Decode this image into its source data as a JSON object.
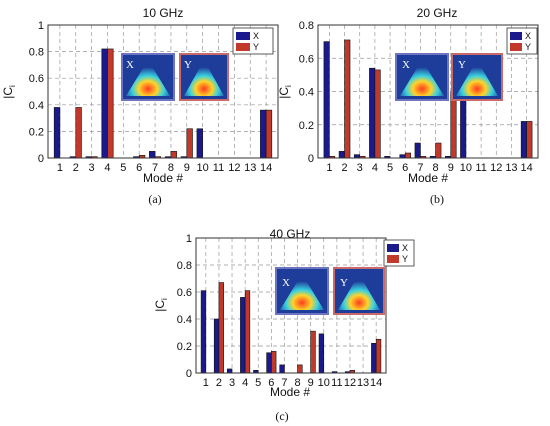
{
  "colors": {
    "x": "#1a1a8c",
    "y": "#c0392b",
    "grid": "#999999",
    "inset_bg": "#1e3c9a"
  },
  "chart_data": [
    {
      "type": "bar",
      "title": "10 GHz",
      "caption": "(a)",
      "xlabel": "Mode #",
      "ylabel": "|C",
      "ylabel_sub": "i",
      "ylim": [
        0,
        1
      ],
      "yticks": [
        0,
        0.2,
        0.4,
        0.6,
        0.8,
        1
      ],
      "categories": [
        "1",
        "2",
        "3",
        "4",
        "5",
        "6",
        "7",
        "8",
        "9",
        "10",
        "11",
        "12",
        "13",
        "14"
      ],
      "series": [
        {
          "name": "X",
          "values": [
            0.38,
            0.01,
            0.01,
            0.82,
            0.0,
            0.01,
            0.05,
            0.01,
            0.01,
            0.22,
            0.0,
            0.0,
            0.0,
            0.36
          ]
        },
        {
          "name": "Y",
          "values": [
            0.0,
            0.38,
            0.01,
            0.82,
            0.0,
            0.02,
            0.01,
            0.05,
            0.22,
            0.0,
            0.0,
            0.0,
            0.0,
            0.36
          ]
        }
      ],
      "grid": true,
      "legend": "top-right",
      "inset_labels": [
        "X",
        "Y"
      ]
    },
    {
      "type": "bar",
      "title": "20 GHz",
      "caption": "(b)",
      "xlabel": "Mode #",
      "ylabel": "|C",
      "ylabel_sub": "i",
      "ylim": [
        0,
        0.8
      ],
      "yticks": [
        0,
        0.2,
        0.4,
        0.6,
        0.8
      ],
      "categories": [
        "1",
        "2",
        "3",
        "4",
        "5",
        "6",
        "7",
        "8",
        "9",
        "10",
        "11",
        "12",
        "13",
        "14"
      ],
      "series": [
        {
          "name": "X",
          "values": [
            0.7,
            0.04,
            0.02,
            0.54,
            0.01,
            0.02,
            0.09,
            0.01,
            0.01,
            0.41,
            0.0,
            0.0,
            0.0,
            0.22
          ]
        },
        {
          "name": "Y",
          "values": [
            0.01,
            0.71,
            0.01,
            0.53,
            0.0,
            0.03,
            0.01,
            0.09,
            0.4,
            0.0,
            0.0,
            0.0,
            0.0,
            0.22
          ]
        }
      ],
      "grid": true,
      "legend": "top-right",
      "inset_labels": [
        "X",
        "Y"
      ]
    },
    {
      "type": "bar",
      "title": "40 GHz",
      "caption": "(c)",
      "xlabel": "Mode #",
      "ylabel": "|C",
      "ylabel_sub": "i",
      "ylim": [
        0,
        1
      ],
      "yticks": [
        0,
        0.2,
        0.4,
        0.6,
        0.8,
        1
      ],
      "categories": [
        "1",
        "2",
        "3",
        "4",
        "5",
        "6",
        "7",
        "8",
        "9",
        "10",
        "11",
        "12",
        "13",
        "14"
      ],
      "series": [
        {
          "name": "X",
          "values": [
            0.61,
            0.4,
            0.03,
            0.56,
            0.02,
            0.15,
            0.06,
            0.0,
            0.0,
            0.29,
            0.01,
            0.01,
            0.0,
            0.22
          ]
        },
        {
          "name": "Y",
          "values": [
            0.0,
            0.67,
            0.0,
            0.61,
            0.0,
            0.16,
            0.0,
            0.06,
            0.31,
            0.0,
            0.0,
            0.02,
            0.0,
            0.25
          ]
        }
      ],
      "grid": true,
      "legend": "top-right",
      "inset_labels": [
        "X",
        "Y"
      ]
    }
  ]
}
